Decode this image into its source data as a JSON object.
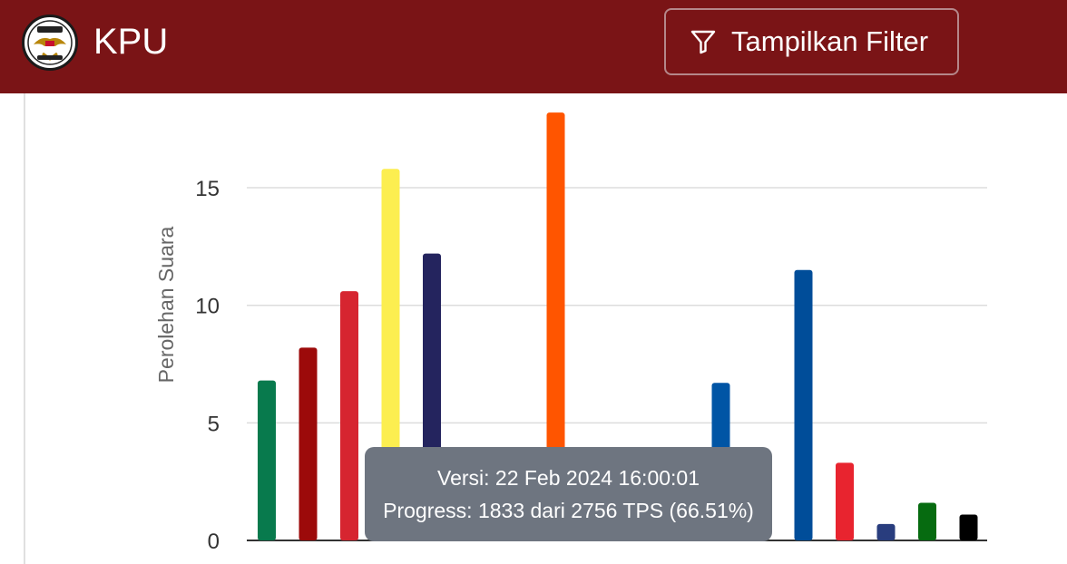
{
  "header": {
    "brand": "KPU",
    "logo_name": "kpu-garuda-logo",
    "filter_button_label": "Tampilkan Filter",
    "background_color": "#7a1416"
  },
  "chart_data": {
    "type": "bar",
    "ylabel": "Perolehan Suara",
    "xlabel": "",
    "ylim": [
      0,
      18
    ],
    "yticks": [
      0,
      5,
      10,
      15
    ],
    "grid": true,
    "values": [
      6.8,
      8.2,
      10.6,
      15.8,
      12.2,
      null,
      null,
      18.2,
      null,
      null,
      null,
      6.7,
      null,
      11.5,
      3.3,
      0.7,
      1.6,
      1.1
    ],
    "colors": [
      "#087a4d",
      "#9c0a0a",
      "#d62530",
      "#fcee50",
      "#24245e",
      null,
      null,
      "#ff5500",
      null,
      null,
      null,
      "#0055a5",
      null,
      "#004d99",
      "#e8242f",
      "#293d7e",
      "#066b10",
      "#000000"
    ]
  },
  "tooltip": {
    "version": "Versi: 22 Feb 2024 16:00:01",
    "progress": "Progress: 1833 dari 2756 TPS (66.51%)"
  }
}
